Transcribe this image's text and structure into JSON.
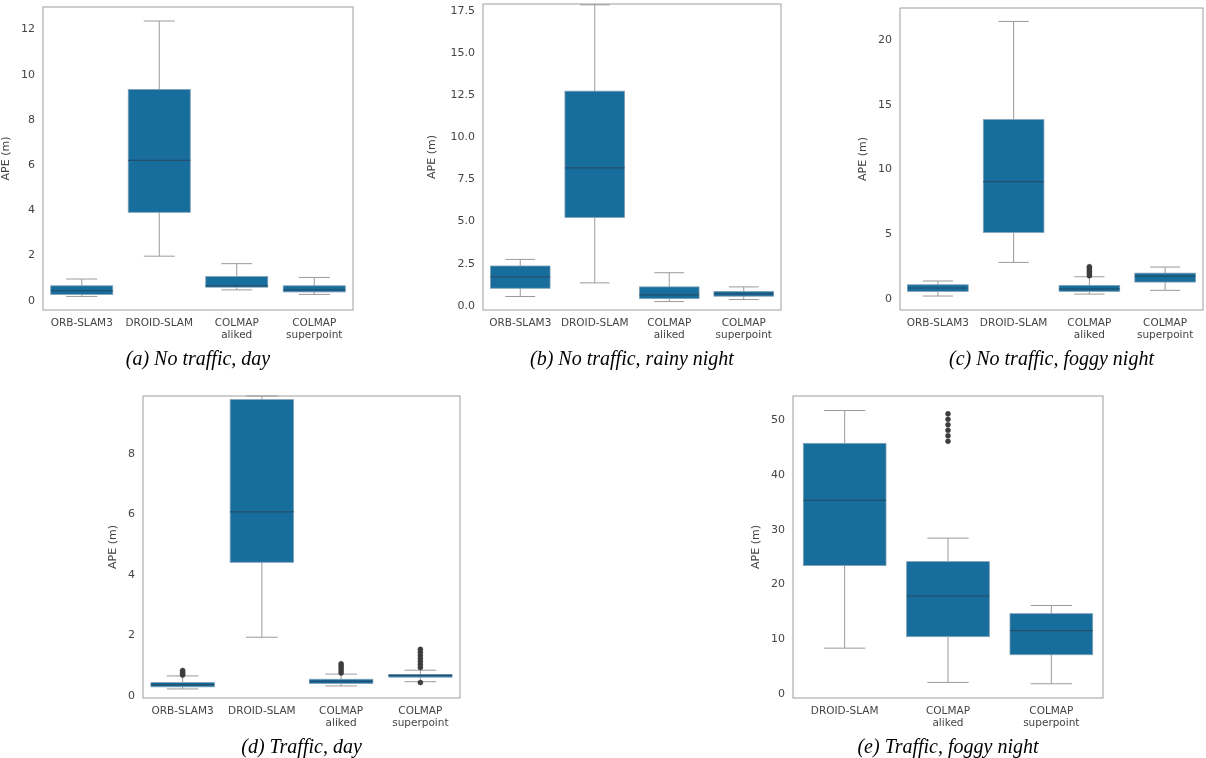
{
  "chart_data": [
    {
      "type": "box",
      "title": "(a) No traffic, day",
      "ylabel": "APE (m)",
      "categories": [
        "ORB-SLAM3",
        "DROID-SLAM",
        "COLMAP\naliked",
        "COLMAP\nsuperpoint"
      ],
      "ylim": [
        -0.45,
        12.95
      ],
      "yticks": [
        0,
        2,
        4,
        6,
        8,
        10,
        12
      ],
      "series": [
        {
          "color": "#176d9c",
          "boxes": [
            {
              "low": 0.15,
              "q1": 0.24,
              "median": 0.41,
              "q3": 0.62,
              "high": 0.92
            },
            {
              "low": 1.93,
              "q1": 3.87,
              "median": 6.17,
              "q3": 9.3,
              "high": 12.33
            },
            {
              "low": 0.44,
              "q1": 0.56,
              "median": 0.62,
              "q3": 1.03,
              "high": 1.6
            },
            {
              "low": 0.24,
              "q1": 0.35,
              "median": 0.44,
              "q3": 0.62,
              "high": 0.99
            }
          ]
        }
      ]
    },
    {
      "type": "box",
      "title": "(b) No traffic, rainy night",
      "ylabel": "APE (m)",
      "categories": [
        "ORB-SLAM3",
        "DROID-SLAM",
        "COLMAP\naliked",
        "COLMAP\nsuperpoint"
      ],
      "ylim": [
        -0.3,
        17.85
      ],
      "yticks": [
        {
          "value": 0,
          "label": "0.0"
        },
        2.5,
        {
          "value": 5,
          "label": "5.0"
        },
        7.5,
        {
          "value": 10,
          "label": "10.0"
        },
        12.5,
        {
          "value": 15,
          "label": "15.0"
        },
        17.5
      ],
      "series": [
        {
          "color": "#176d9c",
          "boxes": [
            {
              "low": 0.5,
              "q1": 0.99,
              "median": 1.67,
              "q3": 2.31,
              "high": 2.7
            },
            {
              "low": 1.31,
              "q1": 5.19,
              "median": 8.13,
              "q3": 12.68,
              "high": 17.8
            },
            {
              "low": 0.2,
              "q1": 0.38,
              "median": 0.6,
              "q3": 1.07,
              "high": 1.91
            },
            {
              "low": 0.32,
              "q1": 0.52,
              "median": 0.66,
              "q3": 0.8,
              "high": 1.07
            }
          ]
        }
      ]
    },
    {
      "type": "box",
      "title": "(c) No traffic, foggy night",
      "ylabel": "APE (m)",
      "categories": [
        "ORB-SLAM3",
        "DROID-SLAM",
        "COLMAP\naliked",
        "COLMAP\nsuperpoint"
      ],
      "ylim": [
        -0.95,
        22.4
      ],
      "yticks": [
        0,
        5,
        10,
        15,
        20
      ],
      "series": [
        {
          "color": "#176d9c",
          "boxes": [
            {
              "low": 0.13,
              "q1": 0.49,
              "median": 0.75,
              "q3": 1.0,
              "high": 1.29
            },
            {
              "low": 2.73,
              "q1": 5.05,
              "median": 8.98,
              "q3": 13.77,
              "high": 21.36
            },
            {
              "low": 0.28,
              "q1": 0.49,
              "median": 0.69,
              "q3": 0.95,
              "high": 1.62,
              "outliers": [
                1.7,
                1.85,
                2.0,
                2.15,
                2.3,
                2.4
              ]
            },
            {
              "low": 0.57,
              "q1": 1.21,
              "median": 1.67,
              "q3": 1.9,
              "high": 2.37
            }
          ]
        }
      ]
    },
    {
      "type": "box",
      "title": "(d) Traffic, day",
      "ylabel": "APE (m)",
      "categories": [
        "ORB-SLAM3",
        "DROID-SLAM",
        "COLMAP\naliked",
        "COLMAP\nsuperpoint"
      ],
      "ylim": [
        -0.11,
        9.88
      ],
      "yticks": [
        0,
        2,
        4,
        6,
        8
      ],
      "series": [
        {
          "color": "#176d9c",
          "boxes": [
            {
              "low": 0.19,
              "q1": 0.26,
              "median": 0.33,
              "q3": 0.4,
              "high": 0.62,
              "outliers": [
                0.65,
                0.7,
                0.75,
                0.8
              ]
            },
            {
              "low": 1.9,
              "q1": 4.38,
              "median": 6.05,
              "q3": 9.76,
              "high": 9.88
            },
            {
              "low": 0.29,
              "q1": 0.37,
              "median": 0.44,
              "q3": 0.51,
              "high": 0.68,
              "outliers": [
                0.72,
                0.8,
                0.88,
                0.95,
                1.02
              ]
            },
            {
              "low": 0.43,
              "q1": 0.58,
              "median": 0.64,
              "q3": 0.67,
              "high": 0.81,
              "outliers": [
                0.4,
                0.9,
                1.0,
                1.1,
                1.2,
                1.3,
                1.4,
                1.5
              ]
            }
          ]
        }
      ]
    },
    {
      "type": "box",
      "title": "(e) Traffic, foggy night",
      "ylabel": "APE (m)",
      "categories": [
        "DROID-SLAM",
        "COLMAP\naliked",
        "COLMAP\nsuperpoint"
      ],
      "ylim": [
        -0.9,
        54.25
      ],
      "yticks": [
        0,
        10,
        20,
        30,
        40,
        50
      ],
      "series": [
        {
          "color": "#176d9c",
          "boxes": [
            {
              "low": 8.2,
              "q1": 23.3,
              "median": 35.2,
              "q3": 45.6,
              "high": 51.6
            },
            {
              "low": 1.95,
              "q1": 10.3,
              "median": 17.7,
              "q3": 24.0,
              "high": 28.3,
              "outliers": [
                46,
                47,
                48,
                49,
                50,
                51
              ]
            },
            {
              "low": 1.7,
              "q1": 7.0,
              "median": 11.4,
              "q3": 14.5,
              "high": 16.0
            }
          ]
        }
      ]
    }
  ]
}
